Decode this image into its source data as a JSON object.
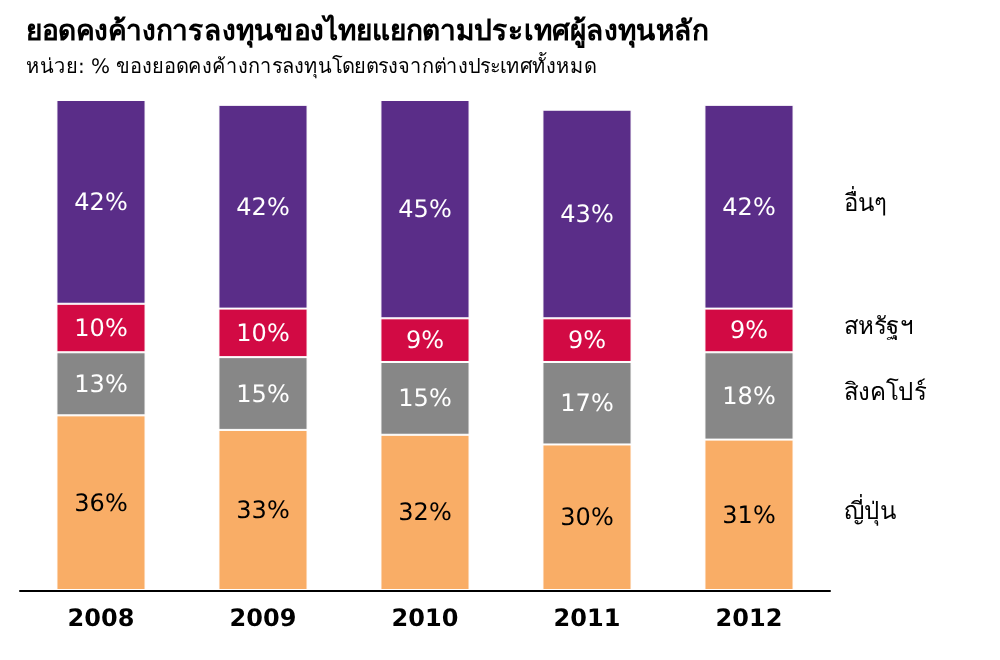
{
  "chart_data": {
    "type": "bar",
    "stacked": true,
    "title": "ยอดคงค้างการลงทุนของไทยแยกตามประเทศผู้ลงทุนหลัก",
    "subtitle": "หน่วย: % ของยอดคงค้างการลงทุนโดยตรงจากต่างประเทศทั้งหมด",
    "categories": [
      "2008",
      "2009",
      "2010",
      "2011",
      "2012"
    ],
    "legend": "right",
    "series": [
      {
        "name": "ญี่ปุ่น",
        "color": "#f9ad66",
        "values": [
          36,
          33,
          32,
          30,
          31
        ],
        "value_labels": [
          "36%",
          "33%",
          "32%",
          "30%",
          "31%"
        ]
      },
      {
        "name": "สิงคโปร์",
        "color": "#878787",
        "values": [
          13,
          15,
          15,
          17,
          18
        ],
        "value_labels": [
          "13%",
          "15%",
          "15%",
          "17%",
          "18%"
        ]
      },
      {
        "name": "สหรัฐฯ",
        "color": "#d20a44",
        "values": [
          10,
          10,
          9,
          9,
          9
        ],
        "value_labels": [
          "10%",
          "10%",
          "9%",
          "9%",
          "9%"
        ]
      },
      {
        "name": "อื่นๆ",
        "color": "#5a2d88",
        "values": [
          42,
          42,
          45,
          43,
          42
        ],
        "value_labels": [
          "42%",
          "42%",
          "45%",
          "43%",
          "42%"
        ]
      }
    ]
  }
}
